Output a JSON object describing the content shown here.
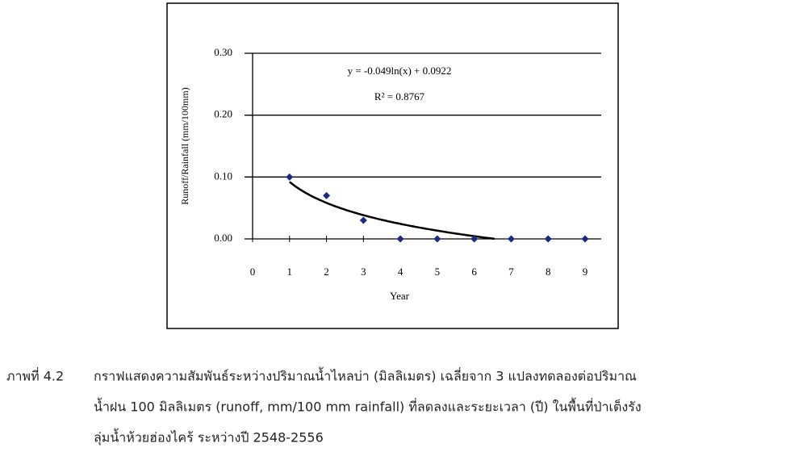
{
  "chart_data": {
    "type": "scatter",
    "x_label": "Year",
    "y_label": "Runoff/Rainfall (mm/100mm)",
    "x": [
      1,
      2,
      3,
      4,
      5,
      6,
      7,
      8,
      9
    ],
    "series": [
      {
        "color": "#1f2a7a",
        "values": [
          0.1,
          0.07,
          0.03,
          0,
          0,
          0,
          0,
          0,
          0
        ]
      }
    ],
    "xlim": [
      0,
      9
    ],
    "xticks": [
      0,
      1,
      2,
      3,
      4,
      5,
      6,
      7,
      8,
      9
    ],
    "ylim": [
      0,
      0.3
    ],
    "yticks": [
      {
        "value": 0,
        "label": "0.00"
      },
      {
        "value": 0.1,
        "label": "0.10"
      },
      {
        "value": 0.2,
        "label": "0.20"
      },
      {
        "value": 0.3,
        "label": "0.30"
      }
    ],
    "grid": true,
    "trendline": {
      "kind": "log",
      "a": -0.049,
      "b": 0.0922,
      "equation": "y = -0.049ln(x) + 0.0922",
      "r2_label": "R² = 0.8767"
    }
  },
  "caption": {
    "label": "ภาพที่ 4.2",
    "lines": [
      "กราฟแสดงความสัมพันธ์ระหว่างปริมาณน้ำไหลบ่า (มิลลิเมตร) เฉลี่ยจาก 3 แปลงทดลองต่อปริมาณ",
      "น้ำฝน 100 มิลลิเมตร (runoff, mm/100 mm rainfall) ที่ลดลงและระยะเวลา (ปี) ในพื้นที่ป่าเต็งรัง",
      "ลุ่มน้ำห้วยฮ่องไคร้ ระหว่างปี 2548-2556"
    ]
  }
}
